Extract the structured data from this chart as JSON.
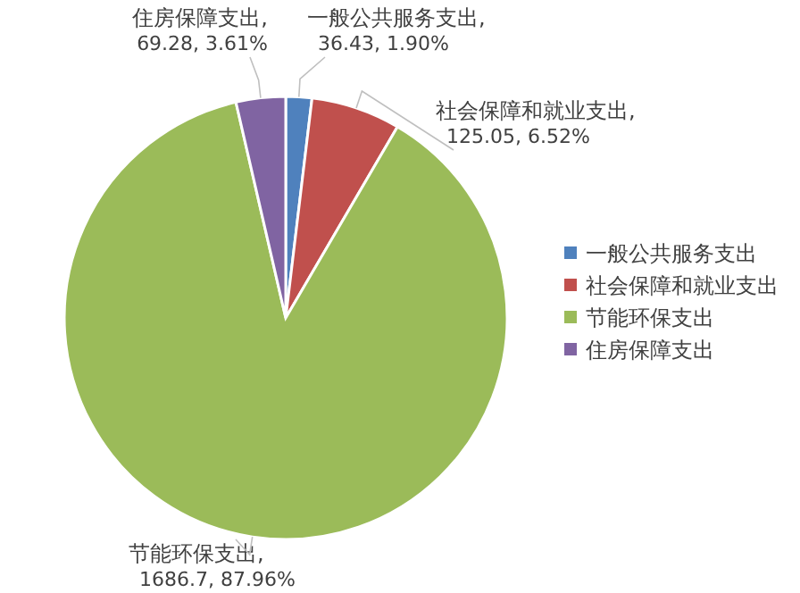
{
  "chart_data": {
    "type": "pie",
    "categories": [
      "一般公共服务支出",
      "社会保障和就业支出",
      "节能环保支出",
      "住房保障支出"
    ],
    "values": [
      36.43,
      125.05,
      1686.7,
      69.28
    ],
    "colors": [
      "#4f81bd",
      "#c0504d",
      "#9bbb59",
      "#8064a2"
    ],
    "value_labels": [
      "一般公共服务支出, 36.43, 1.90%",
      "社会保障和就业支出, 125.05, 6.52%",
      "节能环保支出, 1686.7, 87.96%",
      "住房保障支出, 69.28, 3.61%"
    ],
    "legend": "right"
  }
}
